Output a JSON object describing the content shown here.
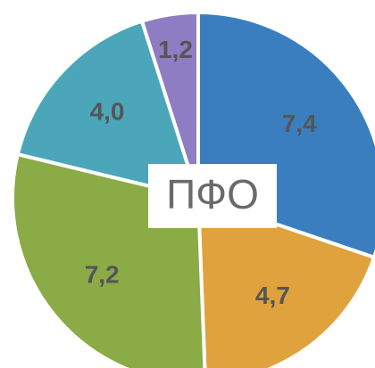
{
  "chart_data": {
    "type": "pie",
    "title": "ПФО",
    "values": [
      7.4,
      4.7,
      7.2,
      4.0,
      1.2
    ],
    "value_labels": [
      "7,4",
      "4,7",
      "7,2",
      "4,0",
      "1,2"
    ],
    "colors": [
      "#3a7ebf",
      "#e0a23c",
      "#8aab46",
      "#4ba6b9",
      "#8e7dc2"
    ]
  }
}
